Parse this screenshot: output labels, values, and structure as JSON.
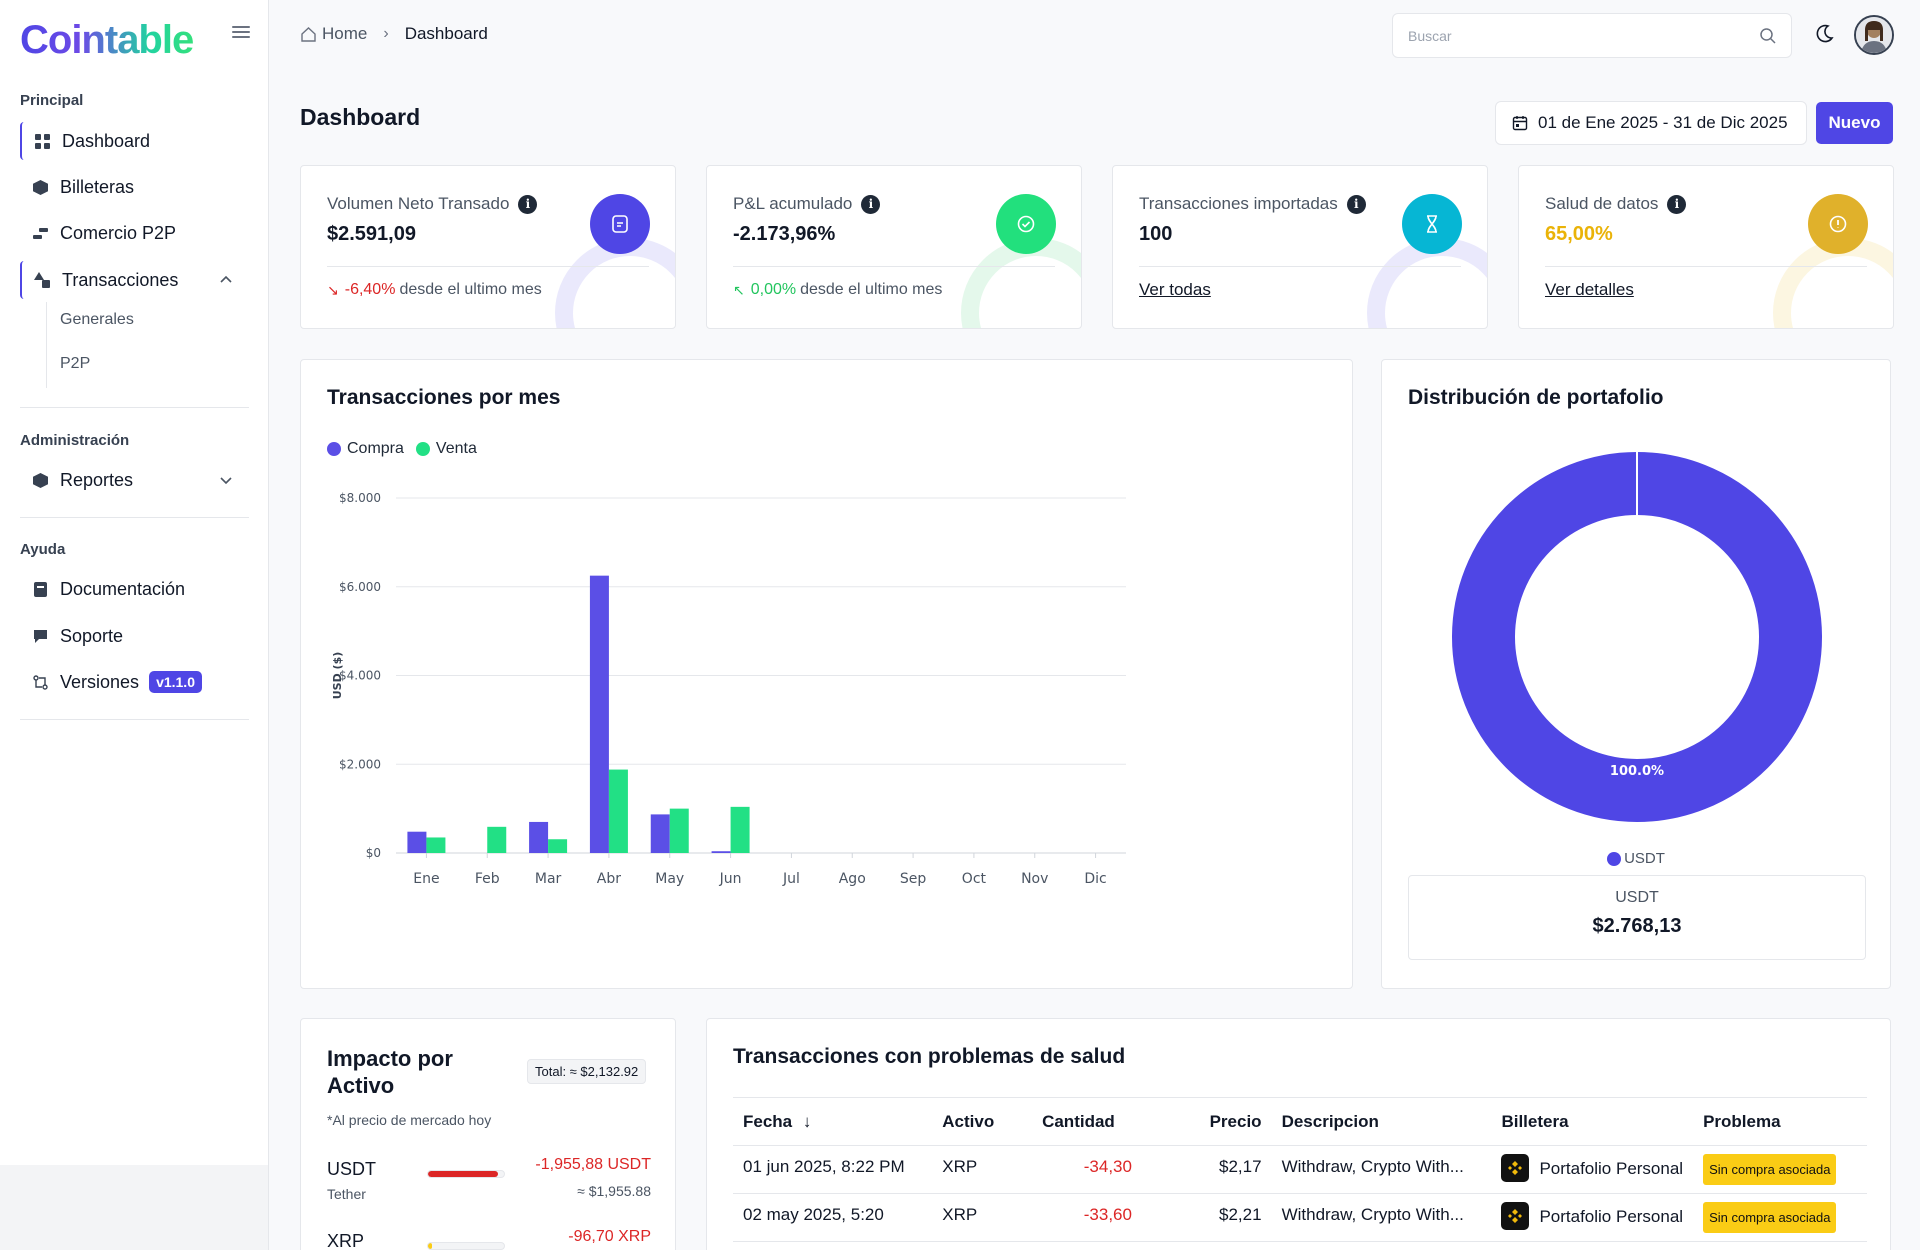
{
  "app": {
    "name": "Cointable"
  },
  "sidebar": {
    "sections": [
      {
        "label": "Principal"
      },
      {
        "label": "Administración"
      },
      {
        "label": "Ayuda"
      }
    ],
    "items": {
      "dashboard": "Dashboard",
      "billeteras": "Billeteras",
      "comercio": "Comercio P2P",
      "transacciones": "Transacciones",
      "generales": "Generales",
      "p2p": "P2P",
      "reportes": "Reportes",
      "documentacion": "Documentación",
      "soporte": "Soporte",
      "versiones": "Versiones"
    },
    "version_badge": "v1.1.0"
  },
  "topbar": {
    "breadcrumb": [
      "Home",
      "Dashboard"
    ],
    "search_placeholder": "Buscar"
  },
  "page": {
    "title": "Dashboard",
    "date_range": "01 de Ene 2025 - 31 de Dic 2025",
    "new_button": "Nuevo"
  },
  "stats": [
    {
      "label": "Volumen Neto Transado",
      "value": "$2.591,09",
      "delta": "-6,40%",
      "delta_text": "desde el ultimo mes",
      "icon": "document-icon",
      "color": "#4f46e5"
    },
    {
      "label": "P&L acumulado",
      "value": "-2.173,96%",
      "delta": "0,00%",
      "delta_text": "desde el ultimo mes",
      "icon": "check-circle-icon",
      "color": "#22c55e"
    },
    {
      "label": "Transacciones importadas",
      "value": "100",
      "link": "Ver todas",
      "icon": "hourglass-icon",
      "color": "#06b6d4"
    },
    {
      "label": "Salud de datos",
      "value": "65,00%",
      "link": "Ver detalles",
      "icon": "alert-circle-icon",
      "color": "#eab308"
    }
  ],
  "chart_title": "Transacciones por mes",
  "chart_data": {
    "type": "bar",
    "categories": [
      "Ene",
      "Feb",
      "Mar",
      "Abr",
      "May",
      "Jun",
      "Jul",
      "Ago",
      "Sep",
      "Oct",
      "Nov",
      "Dic"
    ],
    "series": [
      {
        "name": "Compra",
        "color": "#5b4fe6",
        "values": [
          480,
          0,
          700,
          6250,
          870,
          40,
          0,
          0,
          0,
          0,
          0,
          0
        ]
      },
      {
        "name": "Venta",
        "color": "#22e085",
        "values": [
          350,
          590,
          310,
          1880,
          1000,
          1040,
          0,
          0,
          0,
          0,
          0,
          0
        ]
      }
    ],
    "ylabel": "USD ($)",
    "yticks": [
      "$0",
      "$2.000",
      "$4.000",
      "$6.000",
      "$8.000"
    ],
    "ylim": [
      0,
      8000
    ],
    "grid": true,
    "legend": "top-left"
  },
  "portfolio": {
    "title": "Distribución de portafolio",
    "slices": [
      {
        "name": "USDT",
        "percent": 100.0,
        "label": "100.0%",
        "color": "#4f46e5"
      }
    ],
    "summary_name": "USDT",
    "summary_value": "$2.768,13"
  },
  "impact": {
    "title": "Impacto por Activo",
    "total": "Total: ≈ $2,132.92",
    "note": "*Al precio de mercado hoy",
    "assets": [
      {
        "symbol": "USDT",
        "name": "Tether",
        "amount": "-1,955,88 USDT",
        "usd": "≈ $1,955.88",
        "share": 0.92,
        "bar_color": "#dc2626"
      },
      {
        "symbol": "XRP",
        "name": "",
        "amount": "-96,70 XRP",
        "usd": "",
        "share": 0.05,
        "bar_color": "#facc15"
      }
    ]
  },
  "health": {
    "title": "Transacciones con problemas de salud",
    "columns": [
      "Fecha",
      "Activo",
      "Cantidad",
      "Precio",
      "Descripcion",
      "Billetera",
      "Problema"
    ],
    "rows": [
      {
        "fecha": "01 jun 2025, 8:22 PM",
        "activo": "XRP",
        "cantidad": "-34,30",
        "precio": "$2,17",
        "descripcion": "Withdraw, Crypto With...",
        "billetera": "Portafolio Personal",
        "problema": "Sin compra asociada"
      },
      {
        "fecha": "02 may 2025, 5:20",
        "activo": "XRP",
        "cantidad": "-33,60",
        "precio": "$2,21",
        "descripcion": "Withdraw, Crypto With...",
        "billetera": "Portafolio Personal",
        "problema": "Sin compra asociada"
      }
    ]
  }
}
